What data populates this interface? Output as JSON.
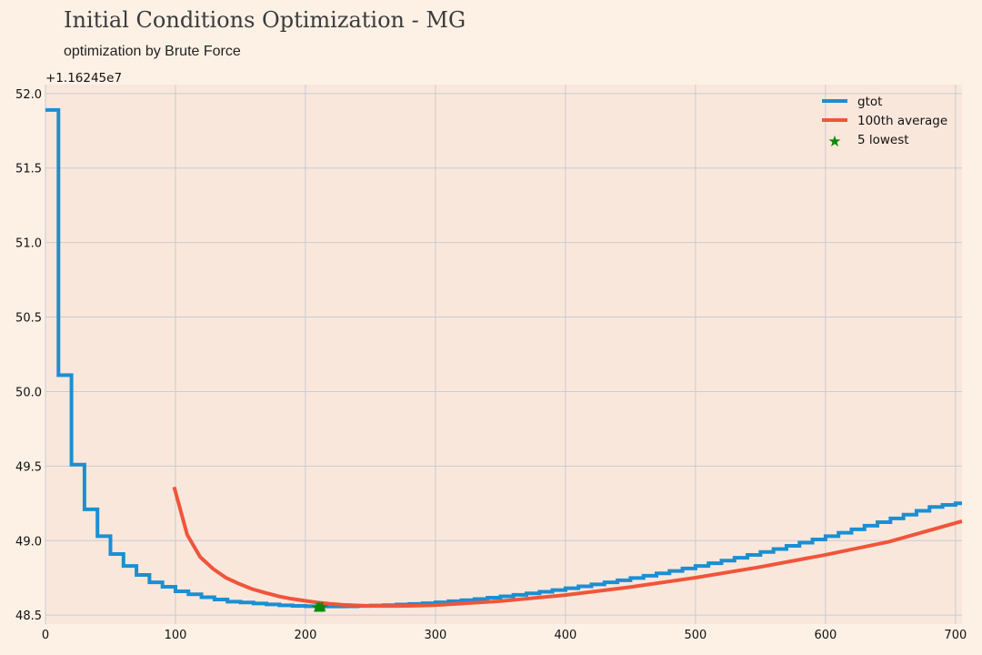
{
  "chart_data": {
    "type": "line",
    "title": "Initial Conditions Optimization - MG",
    "subtitle": "optimization by Brute Force",
    "xlabel": "",
    "ylabel": "",
    "y_offset_label": "+1.16245e7",
    "xlim": [
      0,
      705
    ],
    "ylim": [
      48.44,
      52.06
    ],
    "x_ticks": [
      0,
      100,
      200,
      300,
      400,
      500,
      600,
      700
    ],
    "y_ticks": [
      48.5,
      49.0,
      49.5,
      50.0,
      50.5,
      51.0,
      51.5,
      52.0
    ],
    "y_tick_labels": [
      "48.5",
      "49.0",
      "49.5",
      "50.0",
      "50.5",
      "51.0",
      "51.5",
      "52.0"
    ],
    "grid": true,
    "legend_position": "top-right",
    "legend": [
      "gtot",
      "100th average",
      "5 lowest"
    ],
    "series": [
      {
        "name": "gtot",
        "style": "step",
        "color": "#1b8fd2",
        "x": [
          0,
          10,
          20,
          30,
          40,
          50,
          60,
          70,
          80,
          90,
          100,
          110,
          120,
          130,
          140,
          150,
          160,
          170,
          180,
          190,
          200,
          210,
          220,
          230,
          240,
          250,
          260,
          270,
          280,
          290,
          300,
          310,
          320,
          330,
          340,
          350,
          360,
          370,
          380,
          390,
          400,
          410,
          420,
          430,
          440,
          450,
          460,
          470,
          480,
          490,
          500,
          510,
          520,
          530,
          540,
          550,
          560,
          570,
          580,
          590,
          600,
          610,
          620,
          630,
          640,
          650,
          660,
          670,
          680,
          690,
          700,
          705
        ],
        "y": [
          51.89,
          50.11,
          49.51,
          49.21,
          49.03,
          48.91,
          48.83,
          48.77,
          48.72,
          48.69,
          48.66,
          48.64,
          48.62,
          48.605,
          48.59,
          48.585,
          48.578,
          48.572,
          48.566,
          48.562,
          48.56,
          48.558,
          48.558,
          48.559,
          48.561,
          48.564,
          48.567,
          48.571,
          48.575,
          48.58,
          48.586,
          48.593,
          48.6,
          48.608,
          48.617,
          48.626,
          48.636,
          48.646,
          48.657,
          48.668,
          48.68,
          48.693,
          48.706,
          48.72,
          48.734,
          48.749,
          48.764,
          48.78,
          48.796,
          48.813,
          48.83,
          48.848,
          48.866,
          48.885,
          48.904,
          48.924,
          48.944,
          48.965,
          48.986,
          49.008,
          49.03,
          49.053,
          49.076,
          49.1,
          49.124,
          49.149,
          49.174,
          49.2,
          49.226,
          49.24,
          49.25,
          49.25
        ]
      },
      {
        "name": "100th average",
        "style": "line",
        "color": "#f0553a",
        "x": [
          99,
          109,
          119,
          129,
          139,
          149,
          159,
          169,
          179,
          189,
          199,
          209,
          219,
          229,
          239,
          249,
          259,
          269,
          279,
          289,
          299,
          349,
          399,
          449,
          499,
          549,
          599,
          649,
          705
        ],
        "y": [
          49.36,
          49.04,
          48.89,
          48.81,
          48.75,
          48.71,
          48.675,
          48.65,
          48.627,
          48.61,
          48.597,
          48.585,
          48.576,
          48.569,
          48.565,
          48.562,
          48.561,
          48.561,
          48.562,
          48.564,
          48.567,
          48.593,
          48.634,
          48.687,
          48.75,
          48.822,
          48.903,
          48.993,
          49.13
        ]
      },
      {
        "name": "5 lowest",
        "style": "marker",
        "color": "#0a8a0a",
        "x": [
          209,
          210,
          211,
          212,
          213
        ],
        "y": [
          48.555,
          48.556,
          48.557,
          48.556,
          48.558
        ]
      }
    ]
  }
}
